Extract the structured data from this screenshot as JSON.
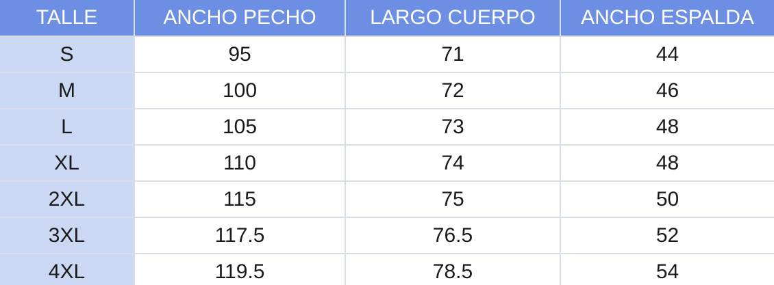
{
  "table": {
    "headers": [
      "TALLE",
      "ANCHO PECHO",
      "LARGO CUERPO",
      "ANCHO ESPALDA"
    ],
    "rows": [
      [
        "S",
        "95",
        "71",
        "44"
      ],
      [
        "M",
        "100",
        "72",
        "46"
      ],
      [
        "L",
        "105",
        "73",
        "48"
      ],
      [
        "XL",
        "110",
        "74",
        "48"
      ],
      [
        "2XL",
        "115",
        "75",
        "50"
      ],
      [
        "3XL",
        "117.5",
        "76.5",
        "52"
      ],
      [
        "4XL",
        "119.5",
        "78.5",
        "54"
      ]
    ]
  },
  "colors": {
    "header_bg": "#6d8fe3",
    "header_text": "#ffffff",
    "first_column_bg": "#cad8f4",
    "grid_line": "#d9dde6"
  }
}
